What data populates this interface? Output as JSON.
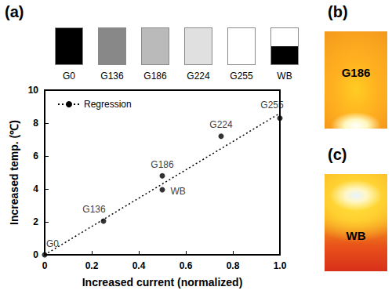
{
  "panel_labels": [
    "(a)",
    "(b)",
    "(c)"
  ],
  "swatches": [
    {
      "label": "G0",
      "color": "#000000"
    },
    {
      "label": "G136",
      "color": "#888888"
    },
    {
      "label": "G186",
      "color": "#bababa"
    },
    {
      "label": "G224",
      "color": "#e0e0e0"
    },
    {
      "label": "G255",
      "color": "#ffffff"
    },
    {
      "label": "WB",
      "colors": [
        "#ffffff",
        "#000000"
      ]
    }
  ],
  "chart_data": {
    "type": "scatter",
    "x_label": "Increased current (normalized)",
    "y_label": "Increased temp. (℃)",
    "xlim": [
      0,
      1
    ],
    "xticks": [
      0,
      0.2,
      0.4,
      0.6,
      0.8,
      {
        "value": 1,
        "label": "1.0"
      }
    ],
    "ylim": [
      0,
      10
    ],
    "yticks": [
      0,
      2,
      4,
      6,
      8,
      10
    ],
    "grid": false,
    "legend": "upper left",
    "series": [
      {
        "type": "scatter",
        "color": "#000000",
        "marker": "circle",
        "x": [
          0,
          0.25,
          0.5,
          0.5,
          0.75,
          1.0
        ],
        "values": [
          0,
          2.05,
          4.8,
          3.95,
          7.2,
          8.3
        ],
        "point_labels": [
          "G0",
          "G136",
          "G186",
          "WB",
          "G224",
          "G255"
        ]
      },
      {
        "name": "Regression",
        "type": "line",
        "color": "#000000",
        "line_style": "dotted",
        "x": [
          0,
          1
        ],
        "values": [
          0,
          8.6
        ]
      }
    ]
  },
  "thermal_images": [
    {
      "label": "G186"
    },
    {
      "label": "WB"
    }
  ]
}
